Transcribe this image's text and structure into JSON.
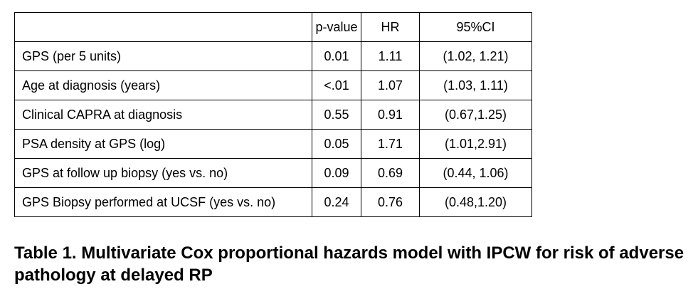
{
  "table": {
    "header": [
      "p-value",
      "HR",
      "95%CI"
    ],
    "rows": [
      [
        "GPS (per 5 units)",
        "0.01",
        "1.11",
        "(1.02, 1.21)"
      ],
      [
        "Age at diagnosis (years)",
        "<.01",
        "1.07",
        "(1.03, 1.11)"
      ],
      [
        "Clinical CAPRA at diagnosis",
        "0.55",
        "0.91",
        "(0.67,1.25)"
      ],
      [
        "PSA density at GPS (log)",
        "0.05",
        "1.71",
        "(1.01,2.91)"
      ],
      [
        "GPS at follow up biopsy (yes vs. no)",
        "0.09",
        "0.69",
        "(0.44, 1.06)"
      ],
      [
        "GPS Biopsy performed at UCSF (yes vs. no)",
        "0.24",
        "0.76",
        "(0.48,1.20)"
      ]
    ]
  },
  "caption": "Table 1. Multivariate Cox proportional hazards model with IPCW for risk of adverse pathology at delayed RP"
}
